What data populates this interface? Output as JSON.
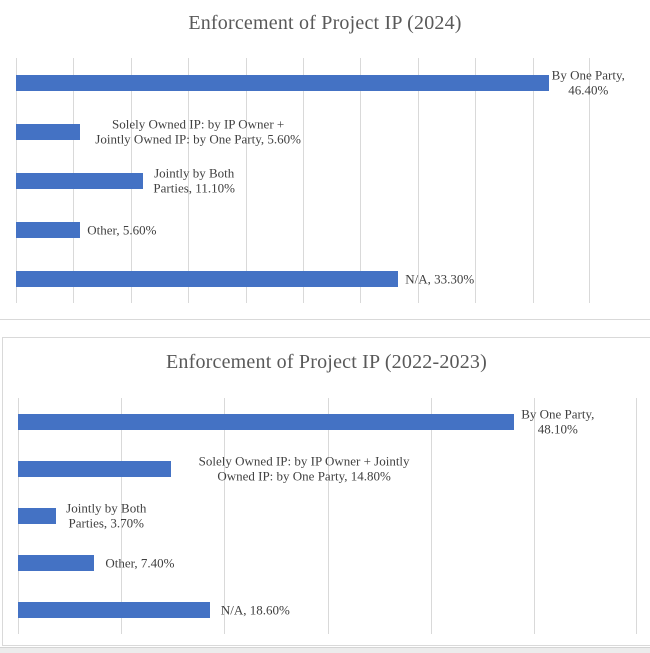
{
  "page": {
    "background": "#ffffff",
    "bottom_strip_color": "#ececec"
  },
  "colors": {
    "bar": "#4472C4",
    "gridline": "#d9d9d9",
    "title_text": "#595959",
    "label_text": "#404040",
    "chart_border": "#d9d9d9"
  },
  "chart_data": [
    {
      "type": "bar",
      "orientation": "horizontal",
      "title": "Enforcement of Project IP (2024)",
      "categories": [
        "By One Party",
        "Solely Owned IP: by IP Owner + Jointly Owned IP: by One Party",
        "Jointly by Both Parties",
        "Other",
        "N/A"
      ],
      "values": [
        46.4,
        5.6,
        11.1,
        5.6,
        33.3
      ],
      "data_labels": [
        [
          "By One Party,",
          "46.40%"
        ],
        [
          "Solely Owned IP: by IP Owner +",
          "Jointly Owned IP: by One Party, 5.60%"
        ],
        [
          "Jointly by Both",
          "Parties, 11.10%"
        ],
        [
          "Other, 5.60%"
        ],
        [
          "N/A, 33.30%"
        ]
      ],
      "label_dx": [
        3,
        15,
        10,
        7,
        7
      ],
      "xlabel": "",
      "ylabel": "",
      "xlim": [
        0,
        50
      ],
      "gridline_step": 5,
      "grid": true,
      "legend_position": "none",
      "bar_color": "#4472C4"
    },
    {
      "type": "bar",
      "orientation": "horizontal",
      "title": "Enforcement of Project IP (2022-2023)",
      "categories": [
        "By One Party",
        "Solely Owned IP: by IP Owner + Jointly Owned IP: by One Party",
        "Jointly by Both Parties",
        "Other",
        "N/A"
      ],
      "values": [
        48.1,
        14.8,
        3.7,
        7.4,
        18.6
      ],
      "data_labels": [
        [
          "By One Party,",
          "48.10%"
        ],
        [
          "Solely Owned IP: by IP Owner + Jointly",
          "Owned IP: by One Party, 14.80%"
        ],
        [
          "Jointly by Both",
          "Parties, 3.70%"
        ],
        [
          "Other, 7.40%"
        ],
        [
          "N/A, 18.60%"
        ]
      ],
      "label_dx": [
        7,
        28,
        10,
        11,
        11
      ],
      "xlabel": "",
      "ylabel": "",
      "xlim": [
        0,
        60
      ],
      "gridline_step": 10,
      "grid": true,
      "legend_position": "none",
      "bar_color": "#4472C4"
    }
  ]
}
